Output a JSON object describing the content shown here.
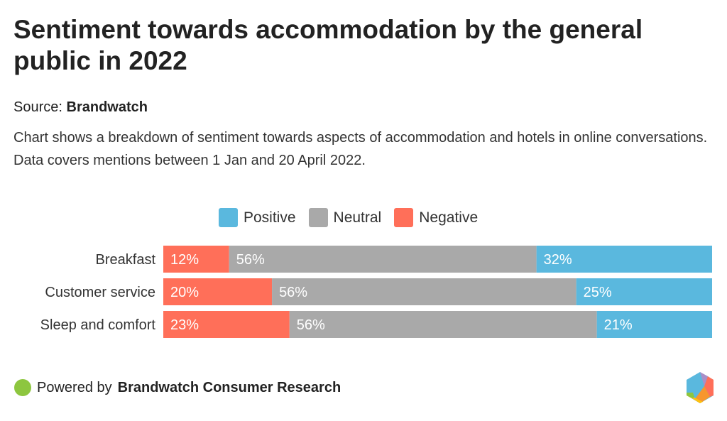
{
  "title": "Sentiment towards accommodation by the general public in 2022",
  "source_label": "Source:",
  "source_name": "Brandwatch",
  "description": "Chart shows a breakdown of sentiment towards aspects of accommodation and hotels in online conversations. Data covers mentions between 1 Jan and 20 April 2022.",
  "footer": {
    "prefix": "Powered by",
    "brand": "Brandwatch Consumer Research"
  },
  "chart_data": {
    "type": "bar",
    "stacked": true,
    "orientation": "horizontal",
    "categories": [
      "Breakfast",
      "Customer service",
      "Sleep and comfort"
    ],
    "series": [
      {
        "name": "Negative",
        "color": "#ff6f59",
        "values": [
          12,
          20,
          23
        ]
      },
      {
        "name": "Neutral",
        "color": "#a9a9a9",
        "values": [
          56,
          56,
          56
        ]
      },
      {
        "name": "Positive",
        "color": "#5ab8de",
        "values": [
          32,
          25,
          21
        ]
      }
    ],
    "legend": [
      "Positive",
      "Neutral",
      "Negative"
    ],
    "legend_colors": [
      "#5ab8de",
      "#a9a9a9",
      "#ff6f59"
    ],
    "legend_position": "top",
    "unit": "%"
  }
}
